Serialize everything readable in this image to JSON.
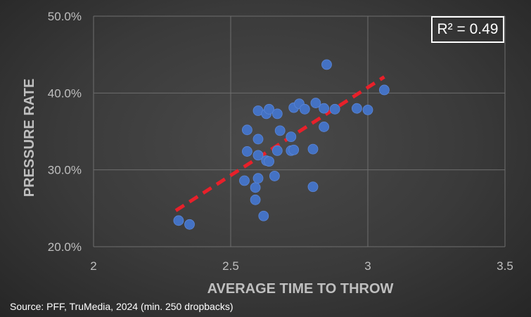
{
  "chart_data": {
    "type": "scatter",
    "xlabel": "AVERAGE TIME TO THROW",
    "ylabel": "PRESSURE RATE",
    "xlim": [
      2,
      3.5
    ],
    "ylim": [
      0.2,
      0.5
    ],
    "x_ticks": [
      "2",
      "2.5",
      "3",
      "3.5"
    ],
    "y_ticks": [
      "20.0%",
      "30.0%",
      "40.0%",
      "50.0%"
    ],
    "grid": true,
    "annotation": "R² = 0.49",
    "source": "Source: PFF, TruMedia, 2024 (min. 250 dropbacks)",
    "point_color": "#4472c4",
    "trendline_color": "#e8202a",
    "trendline": {
      "x": [
        2.3,
        3.06
      ],
      "y": [
        0.247,
        0.421
      ]
    },
    "points": [
      {
        "x": 2.31,
        "y": 0.234
      },
      {
        "x": 2.35,
        "y": 0.229
      },
      {
        "x": 2.55,
        "y": 0.286
      },
      {
        "x": 2.56,
        "y": 0.352
      },
      {
        "x": 2.56,
        "y": 0.324
      },
      {
        "x": 2.59,
        "y": 0.277
      },
      {
        "x": 2.59,
        "y": 0.261
      },
      {
        "x": 2.6,
        "y": 0.377
      },
      {
        "x": 2.6,
        "y": 0.34
      },
      {
        "x": 2.6,
        "y": 0.319
      },
      {
        "x": 2.6,
        "y": 0.289
      },
      {
        "x": 2.62,
        "y": 0.24
      },
      {
        "x": 2.63,
        "y": 0.373
      },
      {
        "x": 2.63,
        "y": 0.312
      },
      {
        "x": 2.64,
        "y": 0.379
      },
      {
        "x": 2.64,
        "y": 0.311
      },
      {
        "x": 2.66,
        "y": 0.292
      },
      {
        "x": 2.67,
        "y": 0.373
      },
      {
        "x": 2.67,
        "y": 0.325
      },
      {
        "x": 2.68,
        "y": 0.351
      },
      {
        "x": 2.72,
        "y": 0.343
      },
      {
        "x": 2.72,
        "y": 0.325
      },
      {
        "x": 2.73,
        "y": 0.381
      },
      {
        "x": 2.73,
        "y": 0.326
      },
      {
        "x": 2.75,
        "y": 0.386
      },
      {
        "x": 2.77,
        "y": 0.379
      },
      {
        "x": 2.8,
        "y": 0.327
      },
      {
        "x": 2.8,
        "y": 0.278
      },
      {
        "x": 2.81,
        "y": 0.387
      },
      {
        "x": 2.84,
        "y": 0.38
      },
      {
        "x": 2.84,
        "y": 0.356
      },
      {
        "x": 2.85,
        "y": 0.437
      },
      {
        "x": 2.88,
        "y": 0.379
      },
      {
        "x": 2.96,
        "y": 0.38
      },
      {
        "x": 3.0,
        "y": 0.378
      },
      {
        "x": 3.06,
        "y": 0.404
      }
    ]
  }
}
